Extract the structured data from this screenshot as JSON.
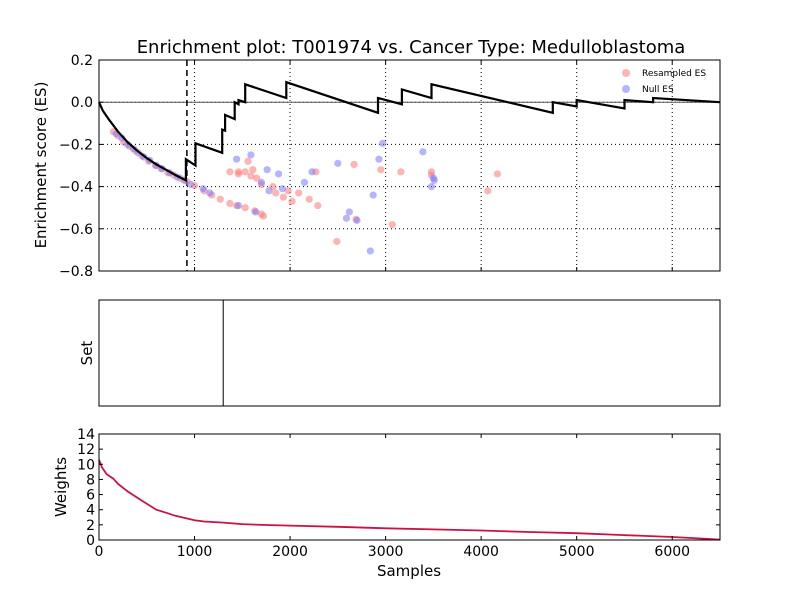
{
  "chart_data": [
    {
      "type": "line",
      "panel": "enrichment",
      "title": "Enrichment plot: T001974 vs. Cancer Type: Medulloblastoma",
      "ylabel": "Enrichment score (ES)",
      "xlim": [
        0,
        6500
      ],
      "ylim": [
        -0.8,
        0.2
      ],
      "yticks": [
        -0.8,
        -0.6,
        -0.4,
        -0.2,
        0.0,
        0.2
      ],
      "ytick_labels": [
        "−0.8",
        "−0.6",
        "−0.4",
        "−0.2",
        "0.0",
        "0.2"
      ],
      "xgrid": [
        1000,
        2000,
        3000,
        4000,
        5000,
        6000
      ],
      "grid": true,
      "vline_dashed": 920,
      "es_line": [
        [
          0,
          0.0
        ],
        [
          40,
          -0.04
        ],
        [
          100,
          -0.08
        ],
        [
          200,
          -0.14
        ],
        [
          300,
          -0.19
        ],
        [
          400,
          -0.23
        ],
        [
          500,
          -0.265
        ],
        [
          600,
          -0.295
        ],
        [
          700,
          -0.32
        ],
        [
          800,
          -0.345
        ],
        [
          910,
          -0.37
        ],
        [
          910,
          -0.27
        ],
        [
          1010,
          -0.3
        ],
        [
          1010,
          -0.195
        ],
        [
          1290,
          -0.24
        ],
        [
          1290,
          -0.13
        ],
        [
          1320,
          -0.135
        ],
        [
          1320,
          -0.06
        ],
        [
          1420,
          -0.08
        ],
        [
          1420,
          -0.0
        ],
        [
          1460,
          -0.01
        ],
        [
          1460,
          0.01
        ],
        [
          1530,
          -0.0
        ],
        [
          1530,
          0.085
        ],
        [
          1960,
          0.02
        ],
        [
          1960,
          0.095
        ],
        [
          2920,
          -0.05
        ],
        [
          2920,
          0.02
        ],
        [
          3170,
          -0.01
        ],
        [
          3170,
          0.06
        ],
        [
          3480,
          0.02
        ],
        [
          3480,
          0.085
        ],
        [
          4750,
          -0.05
        ],
        [
          4750,
          0.0
        ],
        [
          5000,
          -0.02
        ],
        [
          5000,
          0.01
        ],
        [
          5500,
          -0.03
        ],
        [
          5500,
          0.01
        ],
        [
          5800,
          -0.0
        ],
        [
          5800,
          0.02
        ],
        [
          6500,
          0.0
        ]
      ],
      "series": [
        {
          "name": "Resampled ES",
          "color": "#ff7777",
          "points": [
            [
              150,
              -0.14
            ],
            [
              200,
              -0.16
            ],
            [
              260,
              -0.19
            ],
            [
              320,
              -0.21
            ],
            [
              380,
              -0.23
            ],
            [
              450,
              -0.255
            ],
            [
              520,
              -0.28
            ],
            [
              590,
              -0.3
            ],
            [
              650,
              -0.315
            ],
            [
              720,
              -0.335
            ],
            [
              780,
              -0.345
            ],
            [
              850,
              -0.36
            ],
            [
              920,
              -0.375
            ],
            [
              1000,
              -0.395
            ],
            [
              1100,
              -0.42
            ],
            [
              1180,
              -0.44
            ],
            [
              1270,
              -0.46
            ],
            [
              1370,
              -0.48
            ],
            [
              1440,
              -0.49
            ],
            [
              1530,
              -0.5
            ],
            [
              1630,
              -0.515
            ],
            [
              1700,
              -0.53
            ],
            [
              1720,
              -0.54
            ],
            [
              1370,
              -0.33
            ],
            [
              1460,
              -0.33
            ],
            [
              1460,
              -0.34
            ],
            [
              1530,
              -0.33
            ],
            [
              1590,
              -0.35
            ],
            [
              1610,
              -0.32
            ],
            [
              1650,
              -0.36
            ],
            [
              1560,
              -0.28
            ],
            [
              1700,
              -0.39
            ],
            [
              1820,
              -0.4
            ],
            [
              1850,
              -0.43
            ],
            [
              1930,
              -0.45
            ],
            [
              1980,
              -0.42
            ],
            [
              2020,
              -0.47
            ],
            [
              2090,
              -0.43
            ],
            [
              2200,
              -0.46
            ],
            [
              2270,
              -0.33
            ],
            [
              2290,
              -0.49
            ],
            [
              2490,
              -0.66
            ],
            [
              2670,
              -0.295
            ],
            [
              2690,
              -0.555
            ],
            [
              2950,
              -0.32
            ],
            [
              3070,
              -0.58
            ],
            [
              3160,
              -0.33
            ],
            [
              3480,
              -0.33
            ],
            [
              3480,
              -0.345
            ],
            [
              4070,
              -0.42
            ],
            [
              4170,
              -0.34
            ]
          ]
        },
        {
          "name": "Null ES",
          "color": "#7777ff",
          "points": [
            [
              180,
              -0.15
            ],
            [
              240,
              -0.17
            ],
            [
              300,
              -0.2
            ],
            [
              360,
              -0.22
            ],
            [
              410,
              -0.24
            ],
            [
              470,
              -0.26
            ],
            [
              530,
              -0.275
            ],
            [
              600,
              -0.3
            ],
            [
              660,
              -0.315
            ],
            [
              740,
              -0.335
            ],
            [
              820,
              -0.355
            ],
            [
              890,
              -0.37
            ],
            [
              960,
              -0.39
            ],
            [
              1090,
              -0.41
            ],
            [
              1160,
              -0.43
            ],
            [
              1460,
              -0.49
            ],
            [
              1640,
              -0.52
            ],
            [
              1440,
              -0.27
            ],
            [
              1590,
              -0.25
            ],
            [
              1700,
              -0.38
            ],
            [
              1760,
              -0.32
            ],
            [
              1780,
              -0.42
            ],
            [
              1880,
              -0.34
            ],
            [
              1920,
              -0.41
            ],
            [
              2150,
              -0.38
            ],
            [
              2230,
              -0.33
            ],
            [
              2500,
              -0.29
            ],
            [
              2590,
              -0.55
            ],
            [
              2620,
              -0.52
            ],
            [
              2700,
              -0.56
            ],
            [
              2840,
              -0.705
            ],
            [
              2870,
              -0.44
            ],
            [
              2930,
              -0.27
            ],
            [
              2970,
              -0.195
            ],
            [
              3390,
              -0.235
            ],
            [
              3480,
              -0.4
            ],
            [
              3500,
              -0.36
            ],
            [
              3510,
              -0.37
            ]
          ]
        }
      ],
      "legend": [
        "Resampled ES",
        "Null ES"
      ],
      "legend_position": "top-right"
    },
    {
      "type": "line",
      "panel": "set",
      "ylabel": "Set",
      "xlim": [
        0,
        6500
      ],
      "hits": [
        1300
      ]
    },
    {
      "type": "line",
      "panel": "weights",
      "ylabel": "Weights",
      "xlabel": "Samples",
      "xlim": [
        0,
        6500
      ],
      "ylim": [
        0,
        14
      ],
      "yticks": [
        0,
        2,
        4,
        6,
        8,
        10,
        12,
        14
      ],
      "xticks": [
        0,
        1000,
        2000,
        3000,
        4000,
        5000,
        6000
      ],
      "line_color": "#cc1144",
      "weights": [
        [
          0,
          10.6
        ],
        [
          30,
          9.6
        ],
        [
          80,
          8.7
        ],
        [
          150,
          8.1
        ],
        [
          200,
          7.4
        ],
        [
          300,
          6.4
        ],
        [
          400,
          5.6
        ],
        [
          500,
          4.8
        ],
        [
          600,
          4.0
        ],
        [
          700,
          3.6
        ],
        [
          800,
          3.2
        ],
        [
          900,
          2.9
        ],
        [
          1000,
          2.6
        ],
        [
          1100,
          2.45
        ],
        [
          1300,
          2.3
        ],
        [
          1500,
          2.1
        ],
        [
          1700,
          2.0
        ],
        [
          2000,
          1.9
        ],
        [
          2500,
          1.75
        ],
        [
          3000,
          1.55
        ],
        [
          3500,
          1.4
        ],
        [
          4000,
          1.25
        ],
        [
          4500,
          1.05
        ],
        [
          5000,
          0.9
        ],
        [
          5500,
          0.65
        ],
        [
          6000,
          0.4
        ],
        [
          6300,
          0.2
        ],
        [
          6500,
          0.05
        ]
      ]
    }
  ]
}
